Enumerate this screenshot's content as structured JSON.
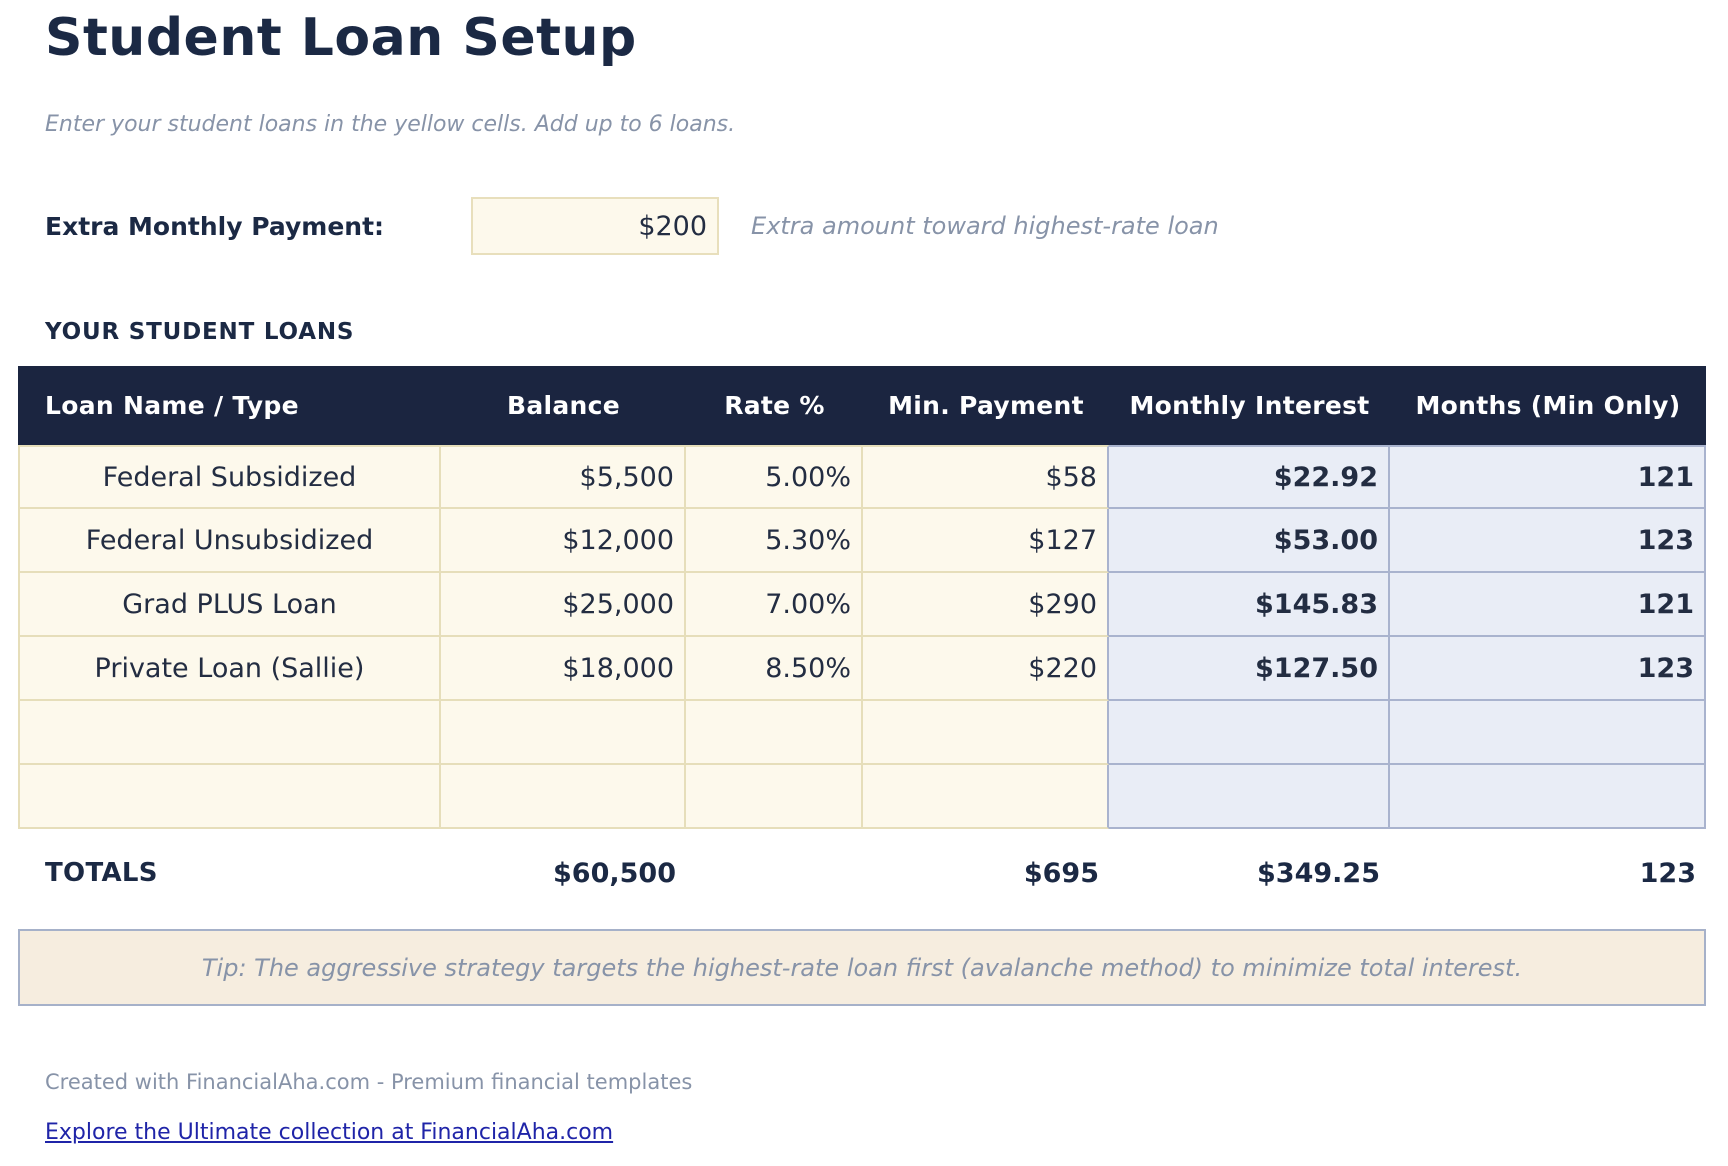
{
  "page": {
    "title": "Student Loan Setup",
    "subtitle": "Enter your student loans in the yellow cells. Add up to 6 loans.",
    "extra_payment": {
      "label": "Extra Monthly Payment:",
      "value": "$200",
      "caption": "Extra amount toward highest-rate loan"
    },
    "section_heading": "YOUR STUDENT LOANS",
    "table": {
      "columns": [
        "Loan Name / Type",
        "Balance",
        "Rate %",
        "Min. Payment",
        "Monthly Interest",
        "Months (Min Only)"
      ],
      "rows": [
        {
          "name": "Federal Subsidized",
          "balance": "$5,500",
          "rate": "5.00%",
          "min_payment": "$58",
          "monthly_interest": "$22.92",
          "months": "121"
        },
        {
          "name": "Federal Unsubsidized",
          "balance": "$12,000",
          "rate": "5.30%",
          "min_payment": "$127",
          "monthly_interest": "$53.00",
          "months": "123"
        },
        {
          "name": "Grad PLUS Loan",
          "balance": "$25,000",
          "rate": "7.00%",
          "min_payment": "$290",
          "monthly_interest": "$145.83",
          "months": "121"
        },
        {
          "name": "Private Loan (Sallie)",
          "balance": "$18,000",
          "rate": "8.50%",
          "min_payment": "$220",
          "monthly_interest": "$127.50",
          "months": "123"
        },
        {
          "name": "",
          "balance": "",
          "rate": "",
          "min_payment": "",
          "monthly_interest": "",
          "months": ""
        },
        {
          "name": "",
          "balance": "",
          "rate": "",
          "min_payment": "",
          "monthly_interest": "",
          "months": ""
        }
      ],
      "totals": {
        "label": "TOTALS",
        "balance": "$60,500",
        "rate": "",
        "min_payment": "$695",
        "monthly_interest": "$349.25",
        "months": "123"
      }
    },
    "tip": "Tip: The aggressive strategy targets the highest-rate loan first (avalanche method) to minimize total interest.",
    "footer": {
      "credit": "Created with FinancialAha.com - Premium financial templates",
      "link": "Explore the Ultimate collection at FinancialAha.com"
    },
    "colors": {
      "header_navy": "#1b2540",
      "text_navy": "#1b2944",
      "input_yellow": "#fdf9ec",
      "input_yellow_border": "#e6deba",
      "computed_blue": "#e9edf6",
      "computed_blue_border": "#a9b3ce",
      "tip_beige": "#f6eddf",
      "tip_border": "#a6b1c9",
      "muted_gray": "#8793a8",
      "link_blue": "#1f24a8"
    }
  }
}
